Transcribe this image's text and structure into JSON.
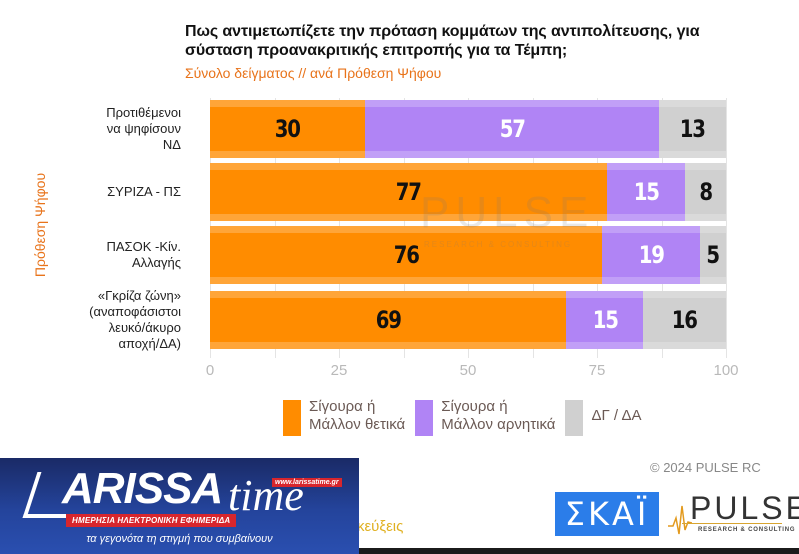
{
  "header": {
    "title": "Πως αντιμετωπίζετε την πρόταση κομμάτων της αντιπολίτευσης, για σύσταση προανακριτικής επιτροπής για τα Τέμπη;",
    "subtitle": "Σύνολο δείγματος // ανά Πρόθεση Ψήφου"
  },
  "chart_data": {
    "type": "bar",
    "orientation": "horizontal",
    "stacked": true,
    "title": "Πως αντιμετωπίζετε την πρόταση κομμάτων της αντιπολίτευσης, για σύσταση προανακριτικής επιτροπής για τα Τέμπη;",
    "subtitle": "Σύνολο δείγματος // ανά Πρόθεση Ψήφου",
    "ylabel": "Πρόθεση Ψήφου",
    "xlabel": "",
    "xlim": [
      0,
      100
    ],
    "xticks": [
      0,
      25,
      50,
      75,
      100
    ],
    "grid": "vertical every 12.5",
    "legend_position": "bottom",
    "categories": [
      "Προτιθέμενοι να ψηφίσουν ΝΔ",
      "ΣΥΡΙΖΑ - ΠΣ",
      "ΠΑΣΟΚ -Κίν. Αλλαγής",
      "«Γκρίζα ζώνη» (αναποφάσιστοι λευκό/άκυρο αποχή/ΔΑ)"
    ],
    "series": [
      {
        "name": "Σίγουρα ή Μάλλον θετικά",
        "color": "#ff8c00",
        "values": [
          30,
          77,
          76,
          69
        ]
      },
      {
        "name": "Σίγουρα ή Μάλλον αρνητικά",
        "color": "#b084f5",
        "values": [
          57,
          15,
          19,
          15
        ]
      },
      {
        "name": "ΔΓ / ΔΑ",
        "color": "#d0d0d0",
        "values": [
          13,
          8,
          5,
          16
        ]
      }
    ]
  },
  "categories_display": [
    [
      "Προτιθέμενοι",
      "να ψηφίσουν",
      "ΝΔ"
    ],
    [
      "ΣΥΡΙΖΑ - ΠΣ"
    ],
    [
      "ΠΑΣΟΚ -Κίν.",
      "Αλλαγής"
    ],
    [
      "«Γκρίζα ζώνη»",
      "(αναποφάσιστοι",
      "λευκό/άκυρο",
      "αποχή/ΔΑ)"
    ]
  ],
  "legend": {
    "positive": [
      "Σίγουρα ή",
      "Μάλλον θετικά"
    ],
    "negative": [
      "Σίγουρα ή",
      "Μάλλον αρνητικά"
    ],
    "dk": "ΔΓ / ΔΑ"
  },
  "watermark": {
    "word": "PULSE",
    "sub": "RESEARCH & CONSULTING"
  },
  "footer": {
    "copyright": "© 2024 PULSE RC",
    "skai_logo": "ΣΚΑΪ",
    "pulse_logo": "PULSE",
    "pulse_sub": "RESEARCH & CONSULTING",
    "partial_text": "κεύξεις"
  },
  "larissatime": {
    "brand": "ARISSA",
    "brand_time": "time",
    "url": "www.larissatime.gr",
    "red_tag": "ΗΜΕΡΗΣΙΑ ΗΛΕΚΤΡΟΝΙΚΗ ΕΦΗΜΕΡΙΔΑ",
    "tagline": "τα γεγονότα τη στιγμή που συμβαίνουν"
  }
}
